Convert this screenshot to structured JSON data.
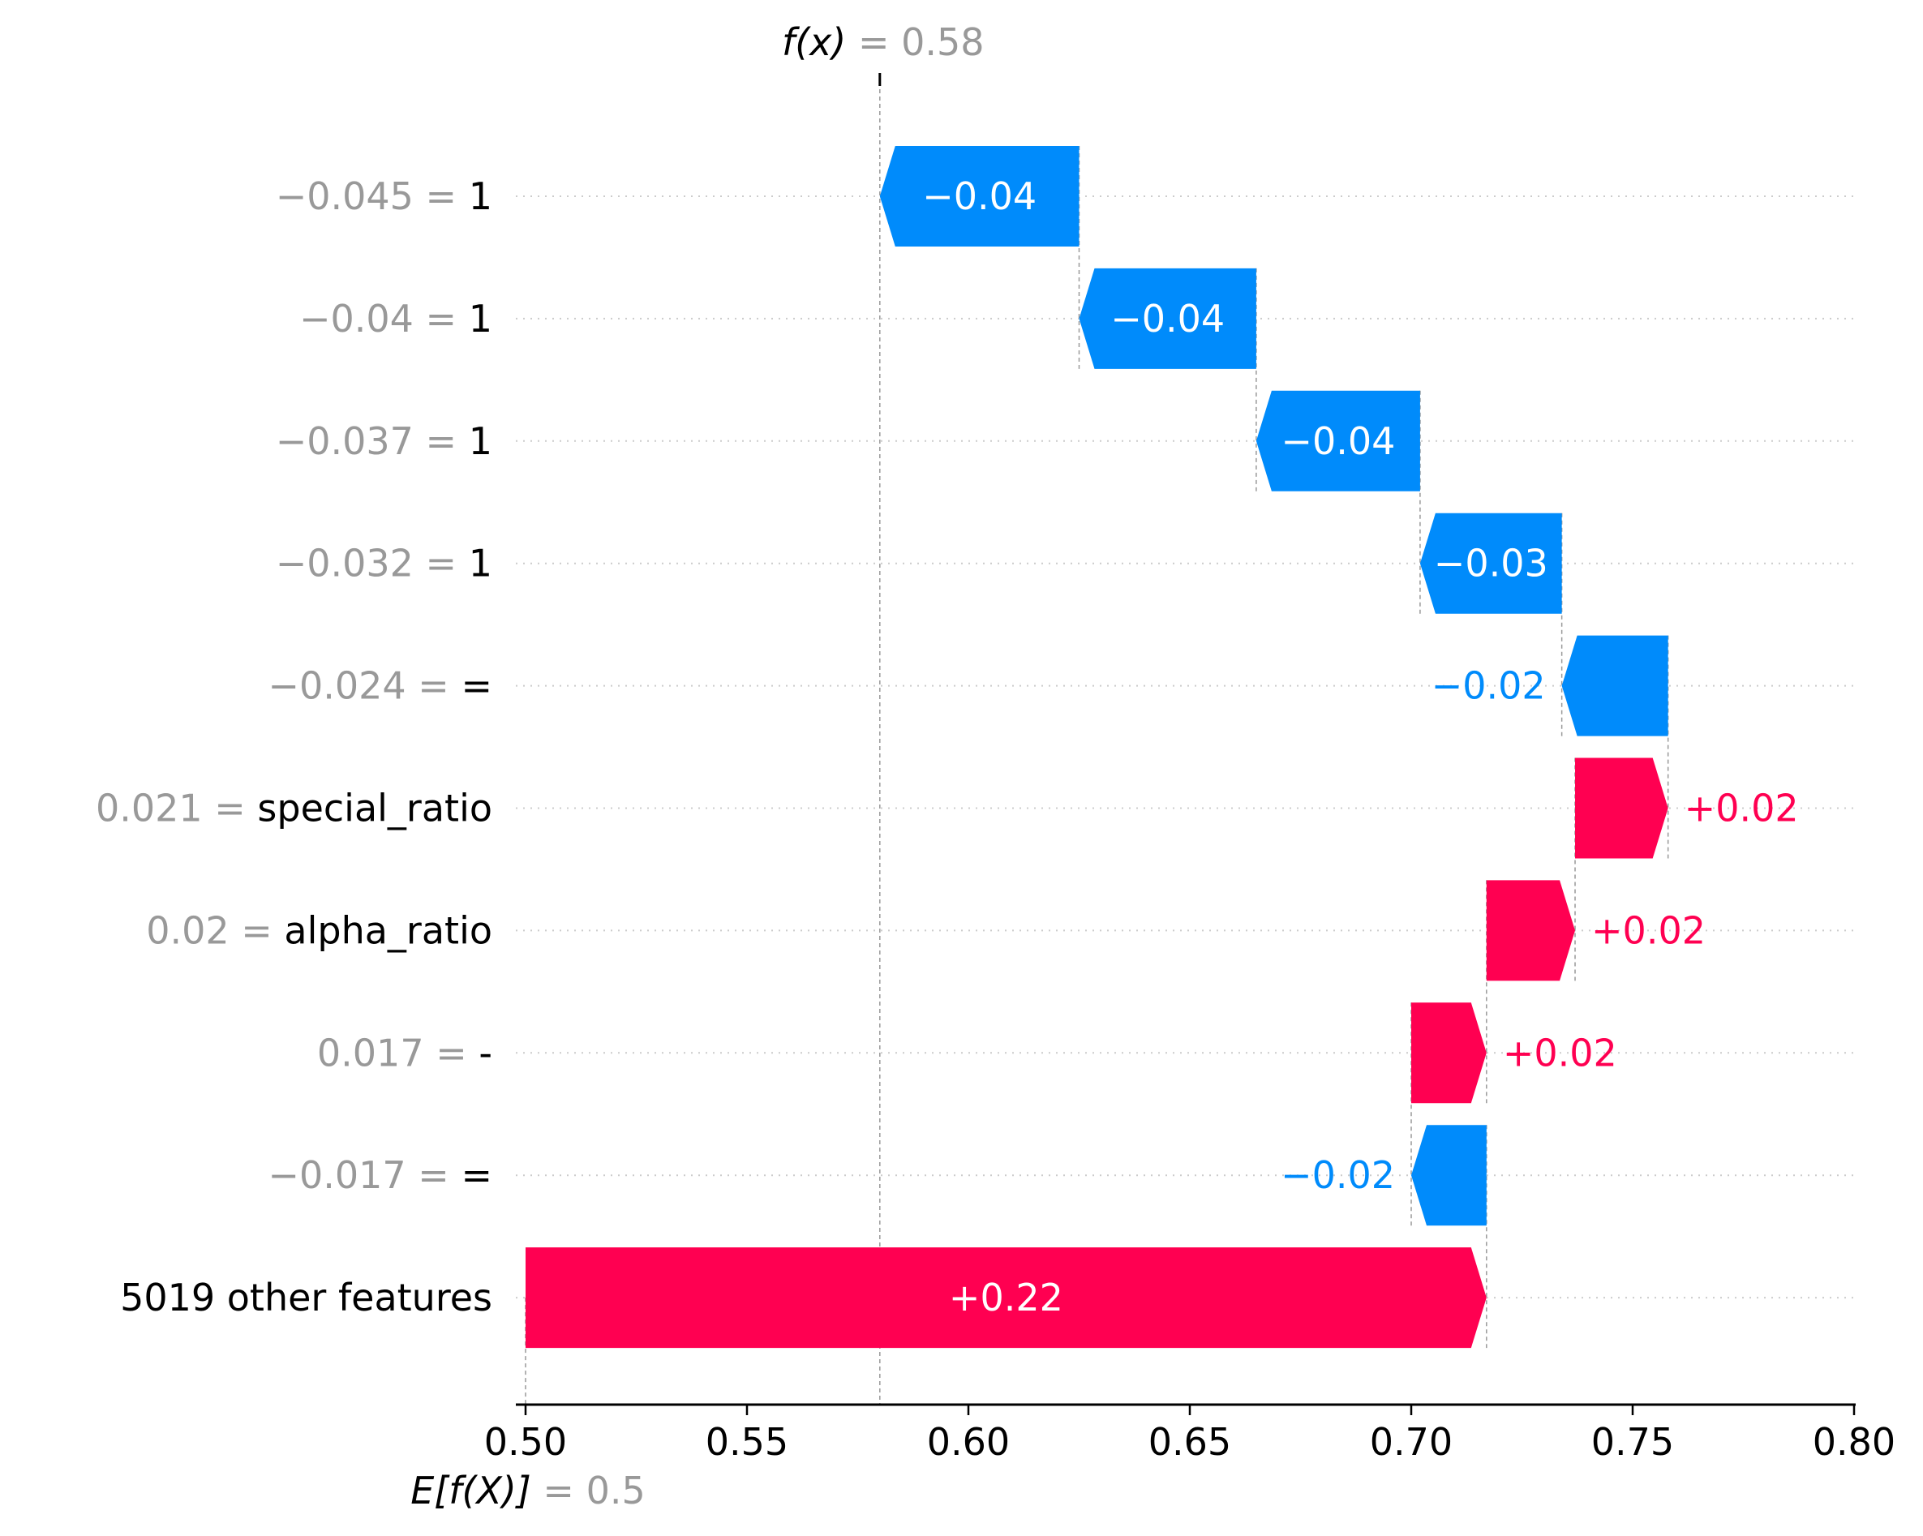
{
  "chart_data": {
    "type": "bar",
    "subtype": "shap-waterfall",
    "output": {
      "symbol": "f(x)",
      "equals": "=",
      "value_text": "0.58",
      "value": 0.58
    },
    "expected": {
      "symbol": "E[f(X)]",
      "equals": "=",
      "value_text": "0.5",
      "value": 0.5
    },
    "xlim": [
      0.5,
      0.8
    ],
    "xticks": [
      {
        "value": 0.5,
        "label": "0.50"
      },
      {
        "value": 0.55,
        "label": "0.55"
      },
      {
        "value": 0.6,
        "label": "0.60"
      },
      {
        "value": 0.65,
        "label": "0.65"
      },
      {
        "value": 0.7,
        "label": "0.70"
      },
      {
        "value": 0.75,
        "label": "0.75"
      },
      {
        "value": 0.8,
        "label": "0.80"
      }
    ],
    "grid": "dotted horizontal lines at each row",
    "colors": {
      "positive": "#ff0051",
      "negative": "#008bfb",
      "label_gray": "#999999",
      "label_black": "#000000",
      "axis": "#000000"
    },
    "rows": [
      {
        "value_text": "−0.045 =",
        "feature": "1",
        "shap": -0.04,
        "start": 0.625,
        "end": 0.58,
        "label": "−0.04",
        "label_inside": true
      },
      {
        "value_text": "−0.04 =",
        "feature": "1",
        "shap": -0.04,
        "start": 0.665,
        "end": 0.625,
        "label": "−0.04",
        "label_inside": true
      },
      {
        "value_text": "−0.037 = ",
        "feature": "1",
        "shap": -0.04,
        "start": 0.702,
        "end": 0.665,
        "label": "−0.04",
        "label_inside": true
      },
      {
        "value_text": "−0.032 = ",
        "feature": "1",
        "shap": -0.03,
        "start": 0.734,
        "end": 0.702,
        "label": "−0.03",
        "label_inside": true
      },
      {
        "value_text": "−0.024 = ",
        "feature": "=",
        "shap": -0.02,
        "start": 0.758,
        "end": 0.734,
        "label": "−0.02",
        "label_inside": false
      },
      {
        "value_text": "0.021 =",
        "feature": "special_ratio",
        "shap": 0.02,
        "start": 0.737,
        "end": 0.758,
        "label": "+0.02",
        "label_inside": false
      },
      {
        "value_text": "0.02 =",
        "feature": "alpha_ratio",
        "shap": 0.02,
        "start": 0.717,
        "end": 0.737,
        "label": "+0.02",
        "label_inside": false
      },
      {
        "value_text": "0.017 =",
        "feature": "-",
        "shap": 0.02,
        "start": 0.7,
        "end": 0.717,
        "label": "+0.02",
        "label_inside": false
      },
      {
        "value_text": "−0.017 =",
        "feature": "=",
        "shap": -0.02,
        "start": 0.717,
        "end": 0.7,
        "label": "−0.02",
        "label_inside": false
      },
      {
        "value_text": "",
        "feature": "5019 other features",
        "shap": 0.22,
        "start": 0.5,
        "end": 0.717,
        "label": "+0.22",
        "label_inside": true
      }
    ]
  }
}
